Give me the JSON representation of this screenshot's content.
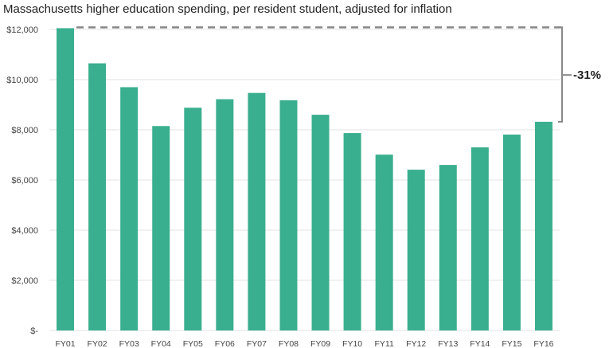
{
  "chart_data": {
    "type": "bar",
    "title": "Massachusetts higher education spending, per resident student, adjusted for inflation",
    "categories": [
      "FY01",
      "FY02",
      "FY03",
      "FY04",
      "FY05",
      "FY06",
      "FY07",
      "FY08",
      "FY09",
      "FY10",
      "FY11",
      "FY12",
      "FY13",
      "FY14",
      "FY15",
      "FY16"
    ],
    "values": [
      12050,
      10650,
      9700,
      8150,
      8880,
      9220,
      9470,
      9180,
      8600,
      7870,
      7010,
      6410,
      6600,
      7300,
      7810,
      8320
    ],
    "ylim": [
      0,
      12000
    ],
    "yticks": [
      0,
      2000,
      4000,
      6000,
      8000,
      10000,
      12000
    ],
    "ytick_labels": [
      "$-",
      "$2,000",
      "$4,000",
      "$6,000",
      "$8,000",
      "$10,000",
      "$12,000"
    ],
    "xlabel": "",
    "ylabel": "",
    "grid": true,
    "bar_color": "#3aaf8f",
    "annotation": {
      "label": "-31%",
      "from_category": "FY01",
      "to_category": "FY16"
    }
  }
}
